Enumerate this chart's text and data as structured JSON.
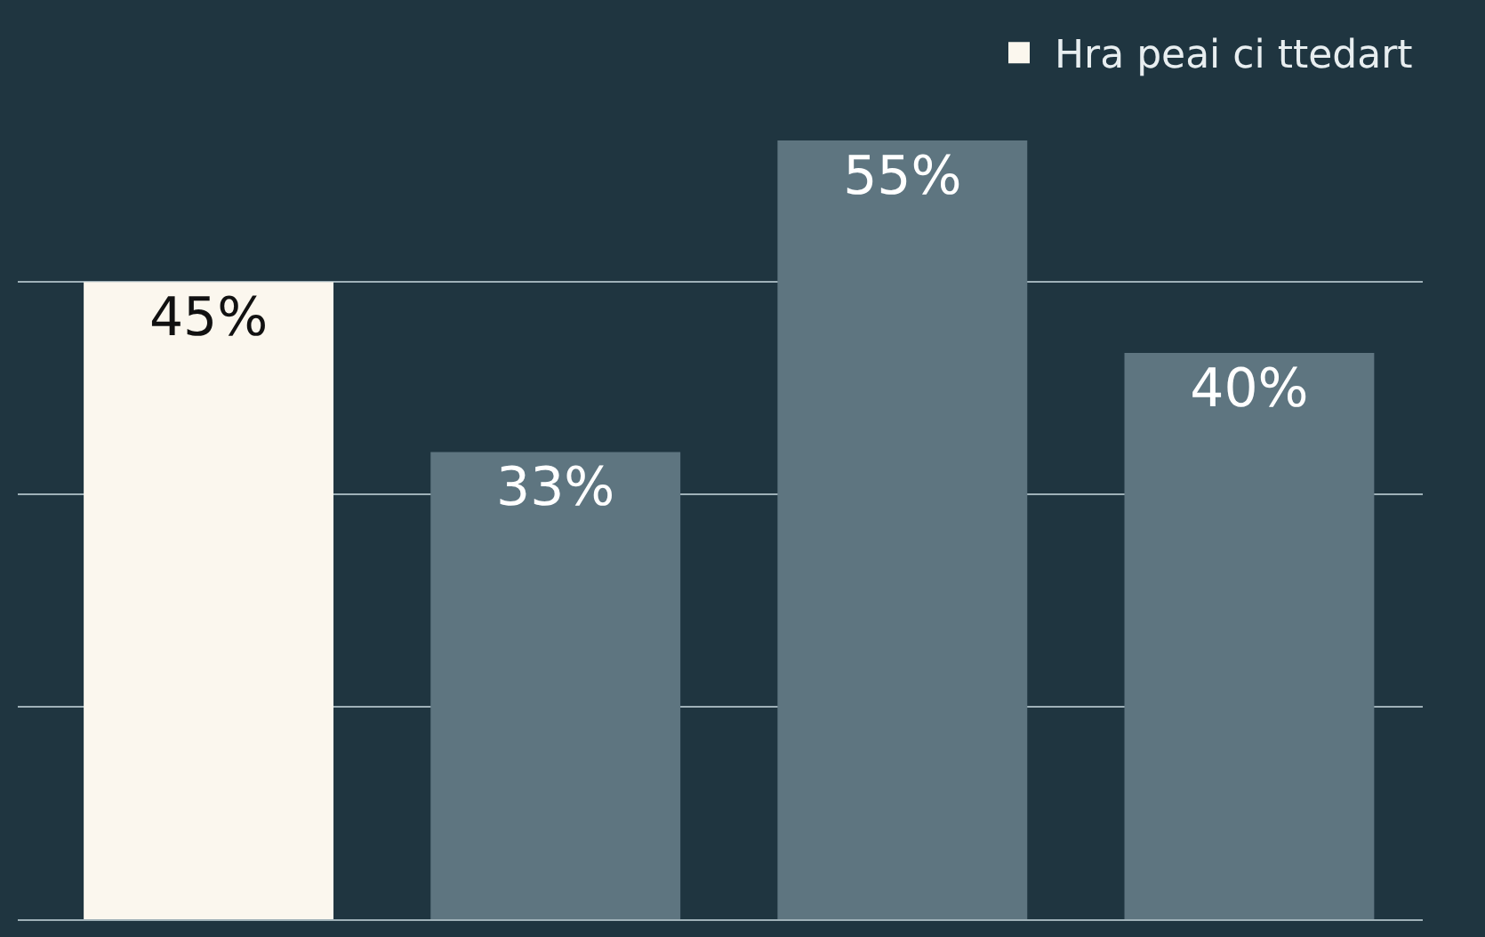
{
  "chart_data": {
    "type": "bar",
    "categories": [
      null,
      null,
      null,
      null
    ],
    "series": [
      {
        "name": "Hra peai ci ttedart",
        "colors": [
          "#fbf7ee",
          "#5e7580",
          "#5e7580",
          "#5e7580"
        ],
        "values": [
          45,
          33,
          55,
          40
        ],
        "value_labels": [
          "45%",
          "33%",
          "55%",
          "40%"
        ]
      }
    ],
    "yticks": [
      {
        "value": 15,
        "label": null
      },
      {
        "value": 30,
        "label": null
      },
      {
        "value": 45,
        "label": null
      }
    ],
    "grid": "y",
    "legend": "top right"
  }
}
